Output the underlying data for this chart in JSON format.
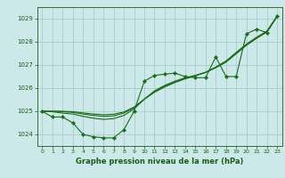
{
  "title": "Graphe pression niveau de la mer (hPa)",
  "background_color": "#cce8e8",
  "grid_color": "#aacccc",
  "line_color": "#1a6b1a",
  "label_color": "#1a5c1a",
  "xlim": [
    -0.5,
    23.5
  ],
  "ylim": [
    1023.5,
    1029.5
  ],
  "yticks": [
    1024,
    1025,
    1026,
    1027,
    1028,
    1029
  ],
  "xticks": [
    0,
    1,
    2,
    3,
    4,
    5,
    6,
    7,
    8,
    9,
    10,
    11,
    12,
    13,
    14,
    15,
    16,
    17,
    18,
    19,
    20,
    21,
    22,
    23
  ],
  "hours": [
    0,
    1,
    2,
    3,
    4,
    5,
    6,
    7,
    8,
    9,
    10,
    11,
    12,
    13,
    14,
    15,
    16,
    17,
    18,
    19,
    20,
    21,
    22,
    23
  ],
  "pressure_main": [
    1025.0,
    1024.75,
    1024.75,
    1024.5,
    1024.0,
    1023.9,
    1023.85,
    1023.85,
    1024.2,
    1025.0,
    1026.3,
    1026.55,
    1026.6,
    1026.65,
    1026.5,
    1026.45,
    1026.45,
    1027.35,
    1026.5,
    1026.5,
    1028.35,
    1028.55,
    1028.4,
    1029.1
  ],
  "pressure_smooth1": [
    1025.0,
    1024.98,
    1024.92,
    1024.88,
    1024.78,
    1024.7,
    1024.65,
    1024.68,
    1024.82,
    1025.1,
    1025.52,
    1025.88,
    1026.12,
    1026.3,
    1026.45,
    1026.55,
    1026.68,
    1026.88,
    1027.12,
    1027.48,
    1027.85,
    1028.15,
    1028.42,
    1029.1
  ],
  "pressure_smooth2": [
    1025.0,
    1025.0,
    1024.98,
    1024.95,
    1024.88,
    1024.82,
    1024.78,
    1024.8,
    1024.92,
    1025.15,
    1025.52,
    1025.85,
    1026.08,
    1026.27,
    1026.42,
    1026.54,
    1026.68,
    1026.9,
    1027.15,
    1027.52,
    1027.88,
    1028.18,
    1028.44,
    1029.1
  ],
  "pressure_smooth3": [
    1025.0,
    1025.0,
    1025.0,
    1024.98,
    1024.93,
    1024.88,
    1024.85,
    1024.87,
    1024.97,
    1025.18,
    1025.52,
    1025.82,
    1026.05,
    1026.24,
    1026.4,
    1026.53,
    1026.68,
    1026.91,
    1027.17,
    1027.54,
    1027.9,
    1028.2,
    1028.46,
    1029.1
  ]
}
